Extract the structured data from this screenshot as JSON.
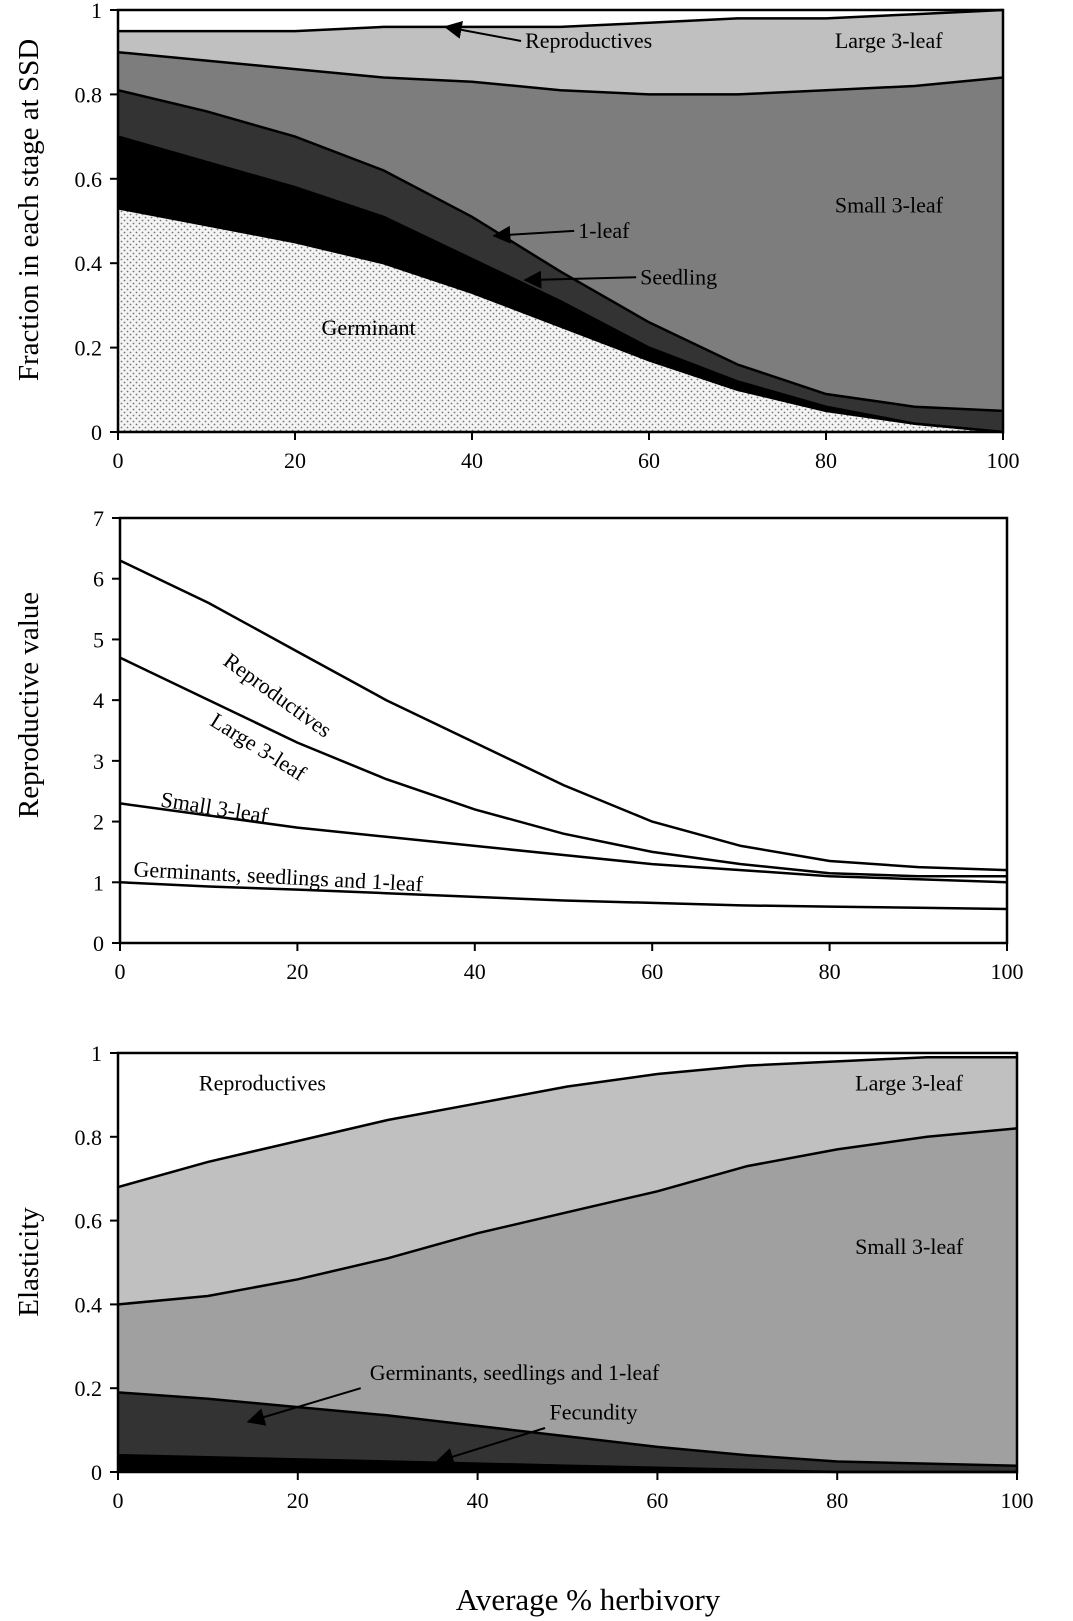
{
  "figure": {
    "xlabel": "Average % herbivory"
  },
  "chart_data": [
    {
      "id": "ssd",
      "type": "area",
      "stacked": true,
      "ylabel": "Fraction in each stage at SSD",
      "xlim": [
        0,
        100
      ],
      "ylim": [
        0,
        1
      ],
      "xticks": [
        "0",
        "20",
        "40",
        "60",
        "80",
        "100"
      ],
      "yticks": [
        "0",
        "0.2",
        "0.4",
        "0.6",
        "0.8",
        "1"
      ],
      "x": [
        0,
        10,
        20,
        30,
        40,
        50,
        60,
        70,
        80,
        90,
        100
      ],
      "boundaries": [
        {
          "name": "Germinant",
          "values": [
            0.53,
            0.49,
            0.45,
            0.4,
            0.33,
            0.25,
            0.17,
            0.1,
            0.05,
            0.02,
            0.0
          ],
          "fill": "#f2f2f2",
          "pattern": true
        },
        {
          "name": "Seedling",
          "values": [
            0.7,
            0.64,
            0.58,
            0.51,
            0.41,
            0.31,
            0.2,
            0.12,
            0.06,
            0.02,
            0.0
          ],
          "fill": "#000000"
        },
        {
          "name": "1-leaf",
          "values": [
            0.81,
            0.76,
            0.7,
            0.62,
            0.51,
            0.38,
            0.26,
            0.16,
            0.09,
            0.06,
            0.05
          ],
          "fill": "#333333"
        },
        {
          "name": "Small 3-leaf",
          "values": [
            0.9,
            0.88,
            0.86,
            0.84,
            0.83,
            0.81,
            0.8,
            0.8,
            0.81,
            0.82,
            0.84
          ],
          "fill": "#7d7d7d"
        },
        {
          "name": "Large 3-leaf",
          "values": [
            0.95,
            0.95,
            0.95,
            0.96,
            0.96,
            0.96,
            0.97,
            0.98,
            0.98,
            0.99,
            1.0
          ],
          "fill": "#c0c0c0"
        },
        {
          "name": "Reproductives",
          "values": [
            1,
            1,
            1,
            1,
            1,
            1,
            1,
            1,
            1,
            1,
            1
          ],
          "fill": "#ffffff"
        }
      ],
      "annotations": [
        {
          "text": "Reproductives",
          "x": 46,
          "y": 0.91,
          "arrow_to": [
            37,
            0.96
          ]
        },
        {
          "text": "Large 3-leaf",
          "x": 81,
          "y": 0.91
        },
        {
          "text": "Small 3-leaf",
          "x": 81,
          "y": 0.52
        },
        {
          "text": "1-leaf",
          "x": 52,
          "y": 0.46,
          "arrow_to": [
            42.5,
            0.465
          ]
        },
        {
          "text": "Seedling",
          "x": 59,
          "y": 0.35,
          "arrow_to": [
            46,
            0.36
          ]
        },
        {
          "text": "Germinant",
          "x": 23,
          "y": 0.23
        }
      ]
    },
    {
      "id": "repro",
      "type": "line",
      "ylabel": "Reproductive value",
      "xlim": [
        0,
        100
      ],
      "ylim": [
        0,
        7
      ],
      "xticks": [
        "0",
        "20",
        "40",
        "60",
        "80",
        "100"
      ],
      "yticks": [
        "0",
        "1",
        "2",
        "3",
        "4",
        "5",
        "6",
        "7"
      ],
      "x": [
        0,
        10,
        20,
        30,
        40,
        50,
        60,
        70,
        80,
        90,
        100
      ],
      "series": [
        {
          "name": "Reproductives",
          "values": [
            6.3,
            5.6,
            4.8,
            4.0,
            3.3,
            2.6,
            2.0,
            1.6,
            1.35,
            1.25,
            1.2
          ]
        },
        {
          "name": "Large 3-leaf",
          "values": [
            4.7,
            4.0,
            3.3,
            2.7,
            2.2,
            1.8,
            1.5,
            1.3,
            1.15,
            1.1,
            1.1
          ]
        },
        {
          "name": "Small 3-leaf",
          "values": [
            2.3,
            2.1,
            1.9,
            1.75,
            1.6,
            1.45,
            1.3,
            1.2,
            1.1,
            1.05,
            1.0
          ]
        },
        {
          "name": "Germinants, seedlings and 1-leaf",
          "values": [
            1.0,
            0.93,
            0.88,
            0.82,
            0.76,
            0.7,
            0.66,
            0.62,
            0.6,
            0.58,
            0.56
          ]
        }
      ],
      "annotations": [
        {
          "text": "Reproductives",
          "x": 11.5,
          "y": 4.6,
          "rotate": 36
        },
        {
          "text": "Large 3-leaf",
          "x": 10,
          "y": 3.6,
          "rotate": 32
        },
        {
          "text": "Small 3-leaf",
          "x": 4.5,
          "y": 2.25,
          "rotate": 9
        },
        {
          "text": "Germinants, seedlings and 1-leaf",
          "x": 1.5,
          "y": 1.1,
          "rotate": 3
        }
      ]
    },
    {
      "id": "elast",
      "type": "area",
      "stacked": true,
      "ylabel": "Elasticity",
      "xlim": [
        0,
        100
      ],
      "ylim": [
        0,
        1
      ],
      "xticks": [
        "0",
        "20",
        "40",
        "60",
        "80",
        "100"
      ],
      "yticks": [
        "0",
        "0.2",
        "0.4",
        "0.6",
        "0.8",
        "1"
      ],
      "x": [
        0,
        10,
        20,
        30,
        40,
        50,
        60,
        70,
        80,
        90,
        100
      ],
      "boundaries": [
        {
          "name": "Fecundity",
          "values": [
            0.04,
            0.035,
            0.03,
            0.025,
            0.02,
            0.015,
            0.01,
            0.005,
            0.0,
            0.0,
            0.0
          ],
          "fill": "#000000"
        },
        {
          "name": "Germinants, seedlings and 1-leaf",
          "values": [
            0.19,
            0.175,
            0.155,
            0.135,
            0.11,
            0.085,
            0.06,
            0.04,
            0.025,
            0.02,
            0.015
          ],
          "fill": "#333333"
        },
        {
          "name": "Small 3-leaf",
          "values": [
            0.4,
            0.42,
            0.46,
            0.51,
            0.57,
            0.62,
            0.67,
            0.73,
            0.77,
            0.8,
            0.82
          ],
          "fill": "#a0a0a0"
        },
        {
          "name": "Large 3-leaf",
          "values": [
            0.68,
            0.74,
            0.79,
            0.84,
            0.88,
            0.92,
            0.95,
            0.97,
            0.98,
            0.99,
            0.99
          ],
          "fill": "#c0c0c0"
        },
        {
          "name": "Reproductives",
          "values": [
            1,
            1,
            1,
            1,
            1,
            1,
            1,
            1,
            1,
            1,
            1
          ],
          "fill": "#ffffff"
        }
      ],
      "annotations": [
        {
          "text": "Reproductives",
          "x": 9,
          "y": 0.91
        },
        {
          "text": "Large 3-leaf",
          "x": 82,
          "y": 0.91
        },
        {
          "text": "Small 3-leaf",
          "x": 82,
          "y": 0.52
        },
        {
          "text": "Germinants, seedlings and 1-leaf",
          "x": 28,
          "y": 0.22,
          "arrow_from": [
            27,
            0.2
          ],
          "arrow_to": [
            14.5,
            0.12
          ]
        },
        {
          "text": "Fecundity",
          "x": 48,
          "y": 0.125,
          "arrow_from": [
            47.5,
            0.105
          ],
          "arrow_to": [
            35.5,
            0.025
          ]
        }
      ]
    }
  ]
}
